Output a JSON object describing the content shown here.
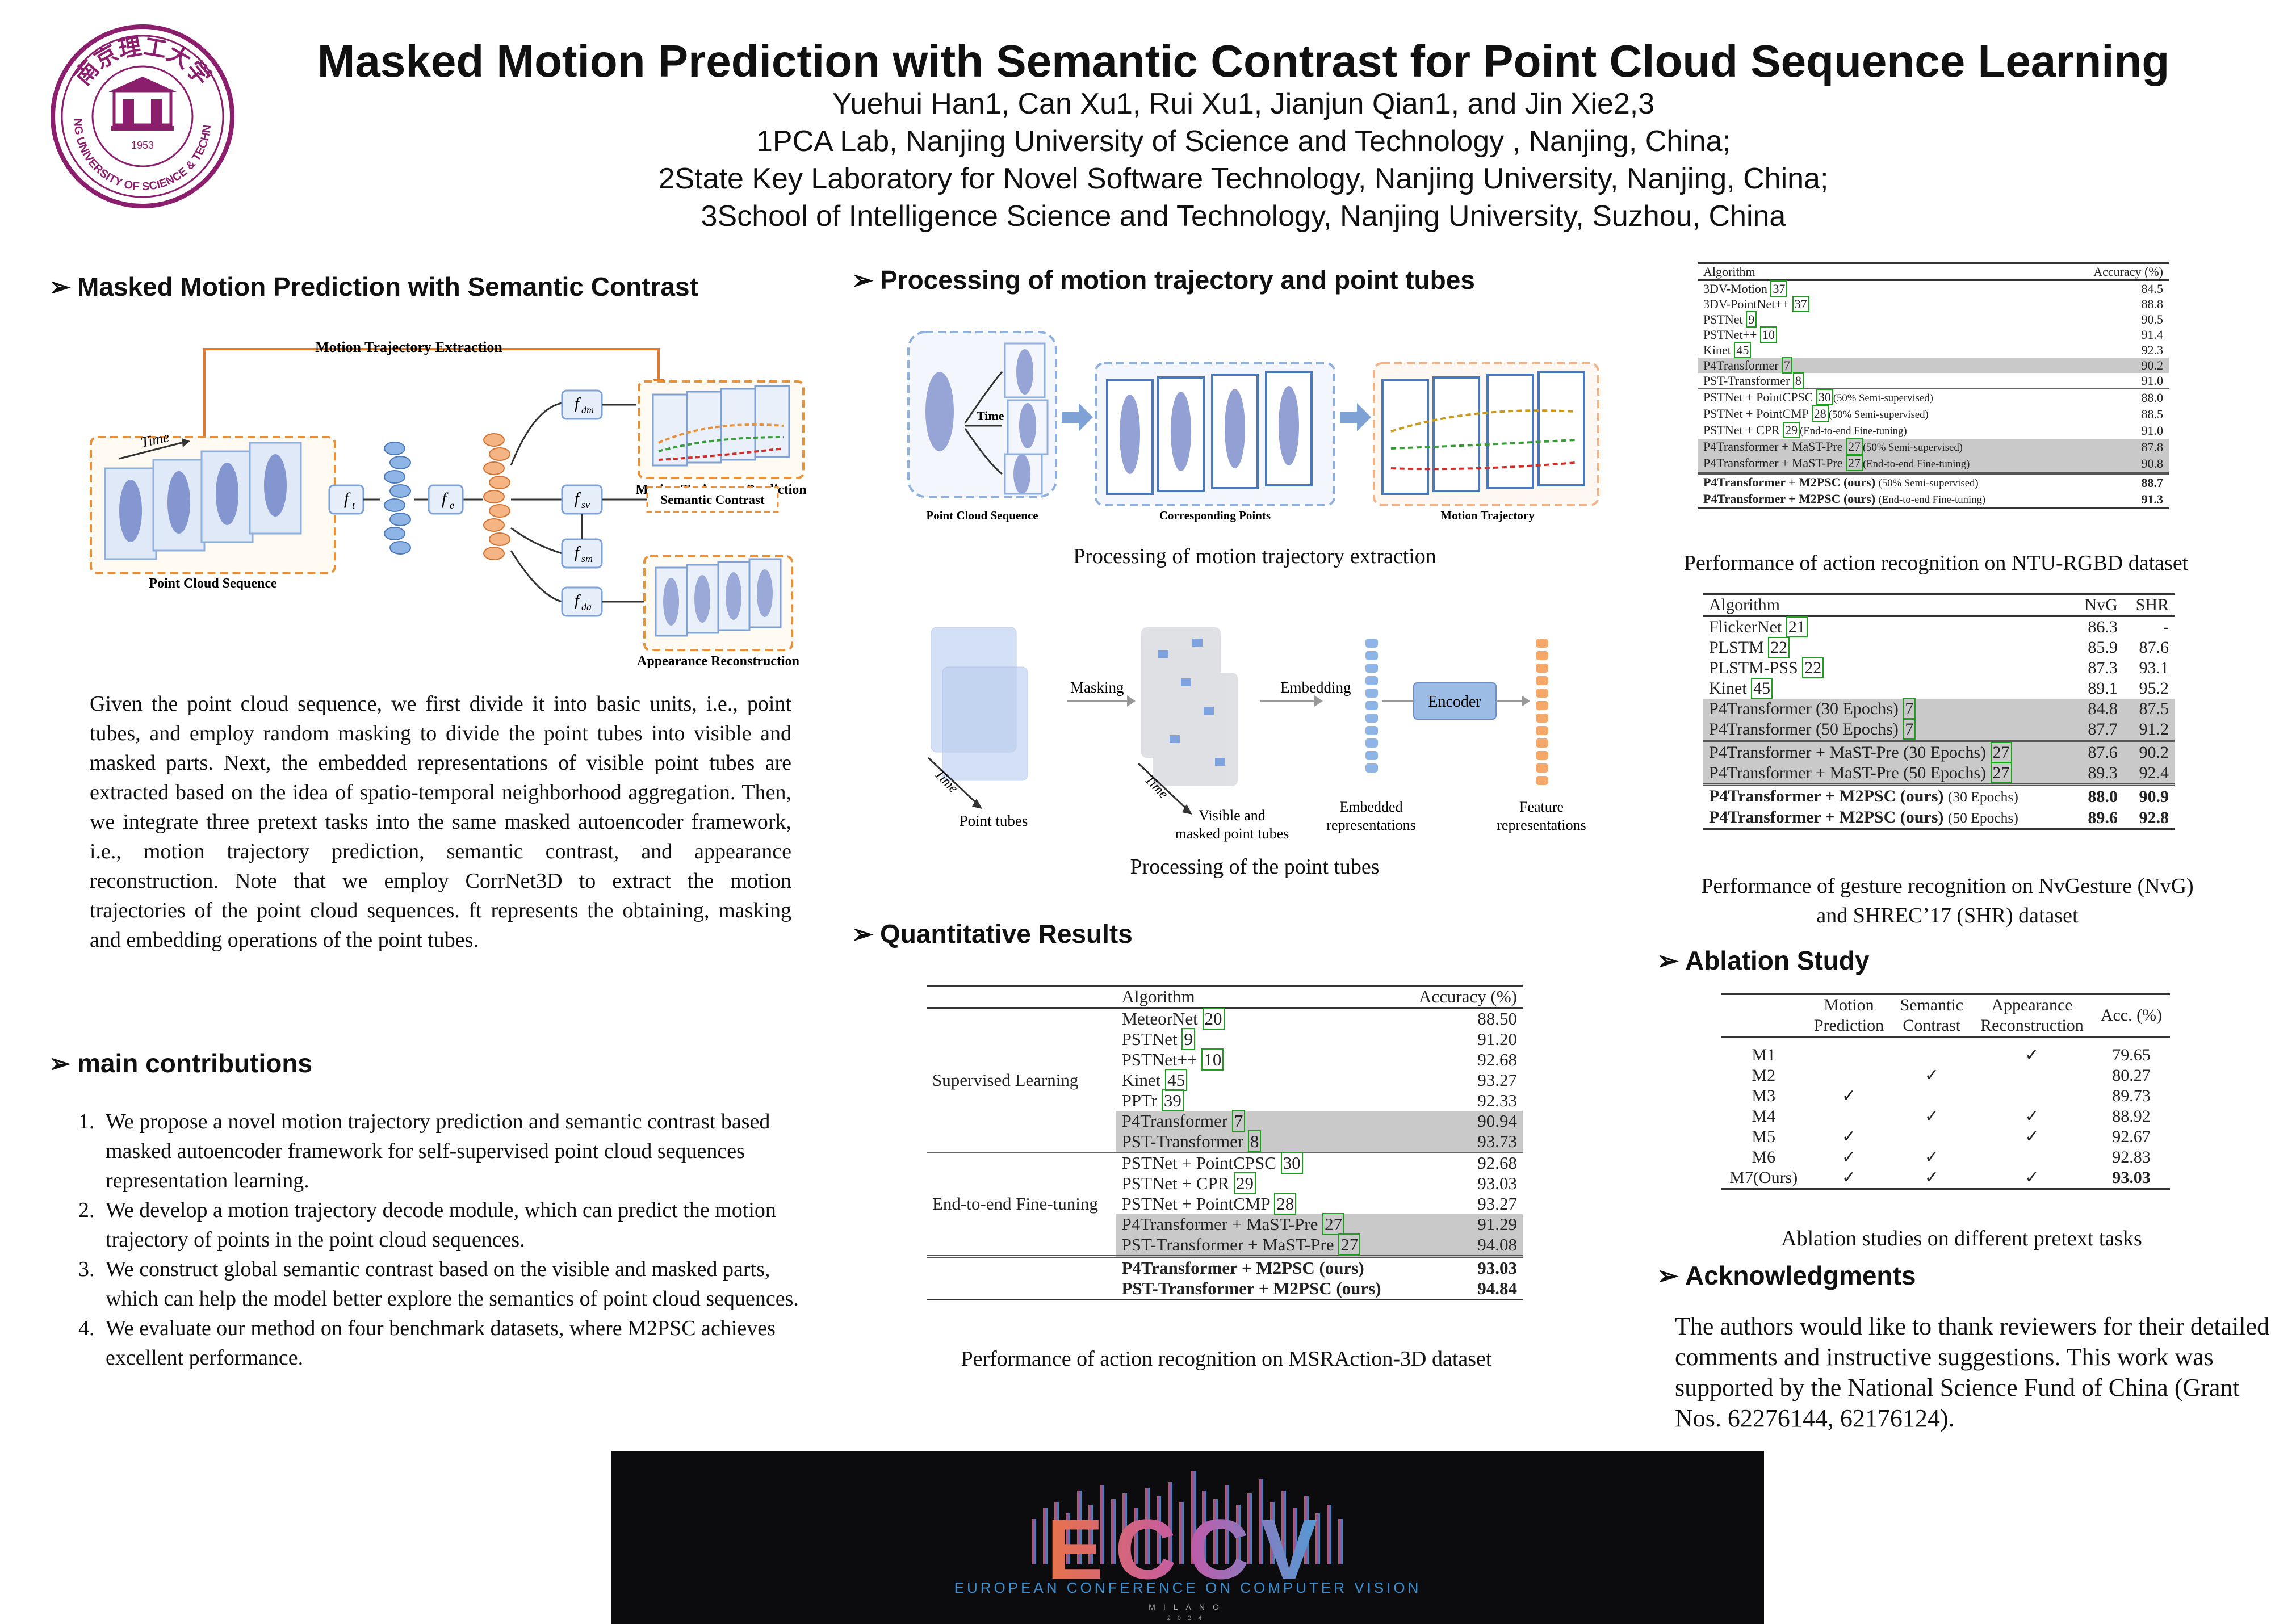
{
  "header": {
    "title": "Masked Motion Prediction with Semantic Contrast for Point Cloud Sequence Learning",
    "authors": "Yuehui Han1, Can Xu1, Rui Xu1, Jianjun Qian1, and Jin Xie2,3",
    "affiliation_1": "1PCA Lab, Nanjing University of Science and Technology , Nanjing, China;",
    "affiliation_2": "2State Key Laboratory for Novel Software Technology, Nanjing University, Nanjing, China;",
    "affiliation_3": "3School of Intelligence Science and Technology, Nanjing University, Suzhou, China",
    "logo_text": "NANJING UNIVERSITY OF SCIENCE & TECHNOLOGY",
    "logo_year": "1953",
    "logo_chinese": "南京理工大学"
  },
  "left": {
    "section1_title": "Masked Motion Prediction with Semantic Contrast",
    "fig1": {
      "top_label": "Motion Trajectory Extraction",
      "time": "Time",
      "point_cloud_sequence": "Point Cloud Sequence",
      "ft": "f",
      "ft_sub": "t",
      "fe": "f",
      "fe_sub": "e",
      "fdm": "f",
      "fdm_sub": "dm",
      "fsv": "f",
      "fsv_sub": "sv",
      "fsm": "f",
      "fsm_sub": "sm",
      "fda": "f",
      "fda_sub": "da",
      "motion_trajectory_prediction": "Motion Trajectory Prediction",
      "semantic_contrast": "Semantic Contrast",
      "appearance_reconstruction": "Appearance Reconstruction"
    },
    "description": "Given the point cloud sequence, we first divide it into basic units, i.e., point tubes, and employ random masking to divide the point tubes into visible and masked parts. Next, the embedded representations of visible point tubes are extracted based on the idea of spatio-temporal neighborhood aggregation. Then, we integrate three pretext tasks into the same masked autoencoder framework, i.e., motion trajectory prediction, semantic contrast, and appearance reconstruction. Note that we employ CorrNet3D to extract the motion trajectories of the point cloud sequences. ft represents the obtaining, masking and embedding operations of the point tubes.",
    "section2_title": "main contributions",
    "contributions": [
      "We propose a novel motion trajectory prediction and semantic contrast based masked autoencoder framework for self-supervised point cloud sequences representation learning.",
      "We develop a motion trajectory decode module, which can predict the motion trajectory of points in the point cloud sequences.",
      "We construct global semantic contrast based on the visible and masked parts, which can help the model better explore the semantics of point cloud sequences.",
      "We evaluate our method on four benchmark datasets, where M2PSC achieves excellent performance."
    ]
  },
  "middle": {
    "section_title": "Processing of motion trajectory and  point tubes",
    "fig2": {
      "time": "Time",
      "point_cloud_sequence": "Point Cloud Sequence",
      "corresponding_points": "Corresponding Points",
      "motion_trajectory": "Motion Trajectory",
      "caption": "Processing of  motion trajectory extraction"
    },
    "fig3": {
      "masking": "Masking",
      "embedding": "Embedding",
      "encoder": "Encoder",
      "time": "Time",
      "point_tubes": "Point tubes",
      "visible_masked_1": "Visible and",
      "visible_masked_2": "masked point tubes",
      "embedded_1": "Embedded",
      "embedded_2": "representations",
      "feature_1": "Feature",
      "feature_2": "representations",
      "caption": "Processing of the point tubes"
    },
    "quant_title": "Quantitative Results",
    "msr_table": {
      "header_algorithm": "Algorithm",
      "header_accuracy": "Accuracy (%)",
      "group_supervised": "Supervised Learning",
      "group_finetune": "End-to-end Fine-tuning",
      "supervised": [
        {
          "name": "MeteorNet",
          "ref": "20",
          "acc": "88.50",
          "hl": false
        },
        {
          "name": "PSTNet",
          "ref": "9",
          "acc": "91.20",
          "hl": false
        },
        {
          "name": "PSTNet++",
          "ref": "10",
          "acc": "92.68",
          "hl": false
        },
        {
          "name": "Kinet",
          "ref": "45",
          "acc": "93.27",
          "hl": false
        },
        {
          "name": "PPTr",
          "ref": "39",
          "acc": "92.33",
          "hl": false
        },
        {
          "name": "P4Transformer",
          "ref": "7",
          "acc": "90.94",
          "hl": true
        },
        {
          "name": "PST-Transformer",
          "ref": "8",
          "acc": "93.73",
          "hl": true
        }
      ],
      "finetune": [
        {
          "name": "PSTNet + PointCPSC",
          "ref": "30",
          "acc": "92.68",
          "hl": false
        },
        {
          "name": "PSTNet + CPR",
          "ref": "29",
          "acc": "93.03",
          "hl": false
        },
        {
          "name": "PSTNet + PointCMP",
          "ref": "28",
          "acc": "93.27",
          "hl": false
        },
        {
          "name": "P4Transformer + MaST-Pre",
          "ref": "27",
          "acc": "91.29",
          "hl": true
        },
        {
          "name": "PST-Transformer + MaST-Pre",
          "ref": "27",
          "acc": "94.08",
          "hl": true
        }
      ],
      "ours": [
        {
          "name": "P4Transformer + M2PSC (ours)",
          "acc": "93.03"
        },
        {
          "name": "PST-Transformer + M2PSC (ours)",
          "acc": "94.84"
        }
      ],
      "caption": "Performance of action recognition on MSRAction-3D dataset"
    }
  },
  "right": {
    "ntu_table": {
      "header_algorithm": "Algorithm",
      "header_accuracy": "Accuracy (%)",
      "rows1": [
        {
          "name": "3DV-Motion",
          "ref": "37",
          "note": "",
          "acc": "84.5",
          "hl": false
        },
        {
          "name": "3DV-PointNet++",
          "ref": "37",
          "note": "",
          "acc": "88.8",
          "hl": false
        },
        {
          "name": "PSTNet",
          "ref": "9",
          "note": "",
          "acc": "90.5",
          "hl": false
        },
        {
          "name": "PSTNet++",
          "ref": "10",
          "note": "",
          "acc": "91.4",
          "hl": false
        },
        {
          "name": "Kinet",
          "ref": "45",
          "note": "",
          "acc": "92.3",
          "hl": false
        },
        {
          "name": "P4Transformer",
          "ref": "7",
          "note": "",
          "acc": "90.2",
          "hl": true
        },
        {
          "name": "PST-Transformer",
          "ref": "8",
          "note": "",
          "acc": "91.0",
          "hl": false
        }
      ],
      "rows2": [
        {
          "name": "PSTNet + PointCPSC",
          "ref": "30",
          "note": "(50% Semi-supervised)",
          "acc": "88.0",
          "hl": false
        },
        {
          "name": "PSTNet + PointCMP",
          "ref": "28",
          "note": "(50% Semi-supervised)",
          "acc": "88.5",
          "hl": false
        },
        {
          "name": "PSTNet + CPR",
          "ref": "29",
          "note": "(End-to-end Fine-tuning)",
          "acc": "91.0",
          "hl": false
        },
        {
          "name": "P4Transformer + MaST-Pre",
          "ref": "27",
          "note": "(50% Semi-supervised)",
          "acc": "87.8",
          "hl": true
        },
        {
          "name": "P4Transformer + MaST-Pre",
          "ref": "27",
          "note": "(End-to-end Fine-tuning)",
          "acc": "90.8",
          "hl": true
        }
      ],
      "ours": [
        {
          "name": "P4Transformer + M2PSC (ours)",
          "note": "(50% Semi-supervised)",
          "acc": "88.7"
        },
        {
          "name": "P4Transformer + M2PSC (ours)",
          "note": "(End-to-end Fine-tuning)",
          "acc": "91.3"
        }
      ],
      "caption": "Performance of action recognition on NTU-RGBD dataset"
    },
    "gesture_table": {
      "header_algorithm": "Algorithm",
      "header_nvg": "NvG",
      "header_shr": "SHR",
      "rows1": [
        {
          "name": "FlickerNet",
          "ref": "21",
          "nvg": "86.3",
          "shr": "-",
          "hl": false
        },
        {
          "name": "PLSTM",
          "ref": "22",
          "nvg": "85.9",
          "shr": "87.6",
          "hl": false
        },
        {
          "name": "PLSTM-PSS",
          "ref": "22",
          "nvg": "87.3",
          "shr": "93.1",
          "hl": false
        },
        {
          "name": "Kinet",
          "ref": "45",
          "nvg": "89.1",
          "shr": "95.2",
          "hl": false
        },
        {
          "name": "P4Transformer (30 Epochs)",
          "ref": "7",
          "nvg": "84.8",
          "shr": "87.5",
          "hl": true
        },
        {
          "name": "P4Transformer (50 Epochs)",
          "ref": "7",
          "nvg": "87.7",
          "shr": "91.2",
          "hl": true
        }
      ],
      "rows2": [
        {
          "name": "P4Transformer + MaST-Pre (30 Epochs)",
          "ref": "27",
          "nvg": "87.6",
          "shr": "90.2",
          "hl": true
        },
        {
          "name": "P4Transformer + MaST-Pre (50 Epochs)",
          "ref": "27",
          "nvg": "89.3",
          "shr": "92.4",
          "hl": true
        }
      ],
      "ours": [
        {
          "name": "P4Transformer + M2PSC (ours)",
          "note": "(30 Epochs)",
          "nvg": "88.0",
          "shr": "90.9"
        },
        {
          "name": "P4Transformer + M2PSC (ours)",
          "note": "(50 Epochs)",
          "nvg": "89.6",
          "shr": "92.8"
        }
      ],
      "caption_1": "Performance of gesture recognition on NvGesture (NvG)",
      "caption_2": "and SHREC’17 (SHR)  dataset"
    },
    "ablation_title": "Ablation Study",
    "ablation_table": {
      "h_motion_1": "Motion",
      "h_motion_2": "Prediction",
      "h_semantic_1": "Semantic",
      "h_semantic_2": "Contrast",
      "h_appear_1": "Appearance",
      "h_appear_2": "Reconstruction",
      "h_acc": "Acc. (%)",
      "check": "✓",
      "rows": [
        {
          "name": "M1",
          "mp": false,
          "sc": false,
          "ar": true,
          "acc": "79.65",
          "bold": false
        },
        {
          "name": "M2",
          "mp": false,
          "sc": true,
          "ar": false,
          "acc": "80.27",
          "bold": false
        },
        {
          "name": "M3",
          "mp": true,
          "sc": false,
          "ar": false,
          "acc": "89.73",
          "bold": false
        },
        {
          "name": "M4",
          "mp": false,
          "sc": true,
          "ar": true,
          "acc": "88.92",
          "bold": false
        },
        {
          "name": "M5",
          "mp": true,
          "sc": false,
          "ar": true,
          "acc": "92.67",
          "bold": false
        },
        {
          "name": "M6",
          "mp": true,
          "sc": true,
          "ar": false,
          "acc": "92.83",
          "bold": false
        },
        {
          "name": "M7(Ours)",
          "mp": true,
          "sc": true,
          "ar": true,
          "acc": "93.03",
          "bold": true
        }
      ],
      "caption": "Ablation studies on different pretext tasks"
    },
    "ack_title": "Acknowledgments",
    "ack_text": "The authors would like to thank reviewers for their detailed comments and instructive suggestions. This work was supported by the National Science Fund of China (Grant Nos. 62276144, 62176124)."
  },
  "banner": {
    "logo_text": "ECCV",
    "line1": "EUROPEAN CONFERENCE ON COMPUTER VISION",
    "line2": "MILANO",
    "line3": "2024"
  },
  "colors": {
    "logo_purple": "#8b1f6d",
    "orange_dashed": "#e8913a",
    "blue_dashed": "#7fa2d6",
    "highlight_gray": "#c9c9c9",
    "ref_green": "#1aa31a"
  }
}
